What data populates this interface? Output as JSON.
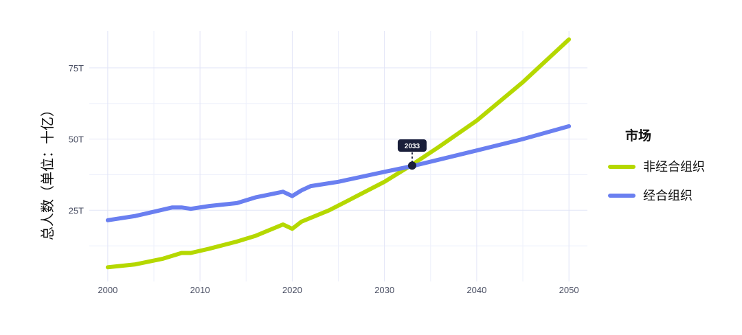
{
  "chart_data": {
    "type": "line",
    "ylabel": "总人数（单位：十亿）",
    "x_ticks": [
      "2000",
      "2010",
      "2020",
      "2030",
      "2040",
      "2050"
    ],
    "y_ticks": [
      "25T",
      "50T",
      "75T"
    ],
    "xlim": [
      1998,
      2052
    ],
    "ylim": [
      0,
      88
    ],
    "grid": true,
    "legend": {
      "title": "市场",
      "position": "right"
    },
    "series": [
      {
        "name": "非经合组织",
        "color": "#b5d800",
        "points": [
          [
            2000,
            5
          ],
          [
            2003,
            6
          ],
          [
            2006,
            8
          ],
          [
            2008,
            10
          ],
          [
            2009,
            10
          ],
          [
            2011,
            11.5
          ],
          [
            2014,
            14
          ],
          [
            2016,
            16
          ],
          [
            2019,
            20
          ],
          [
            2020,
            18.5
          ],
          [
            2021,
            21
          ],
          [
            2024,
            25
          ],
          [
            2027,
            30
          ],
          [
            2030,
            35
          ],
          [
            2033,
            41
          ],
          [
            2036,
            47.5
          ],
          [
            2040,
            56.5
          ],
          [
            2045,
            70
          ],
          [
            2050,
            85
          ]
        ]
      },
      {
        "name": "经合组织",
        "color": "#6a7ff0",
        "points": [
          [
            2000,
            21.5
          ],
          [
            2003,
            23
          ],
          [
            2005,
            24.5
          ],
          [
            2007,
            26
          ],
          [
            2008,
            26
          ],
          [
            2009,
            25.5
          ],
          [
            2011,
            26.5
          ],
          [
            2014,
            27.5
          ],
          [
            2016,
            29.5
          ],
          [
            2019,
            31.5
          ],
          [
            2020,
            30
          ],
          [
            2021,
            32
          ],
          [
            2022,
            33.5
          ],
          [
            2025,
            35
          ],
          [
            2030,
            38.5
          ],
          [
            2033,
            40.5
          ],
          [
            2040,
            46
          ],
          [
            2045,
            50
          ],
          [
            2050,
            54.5
          ]
        ]
      }
    ],
    "annotation": {
      "label": "2033",
      "x": 2033,
      "y": 40.7
    }
  }
}
